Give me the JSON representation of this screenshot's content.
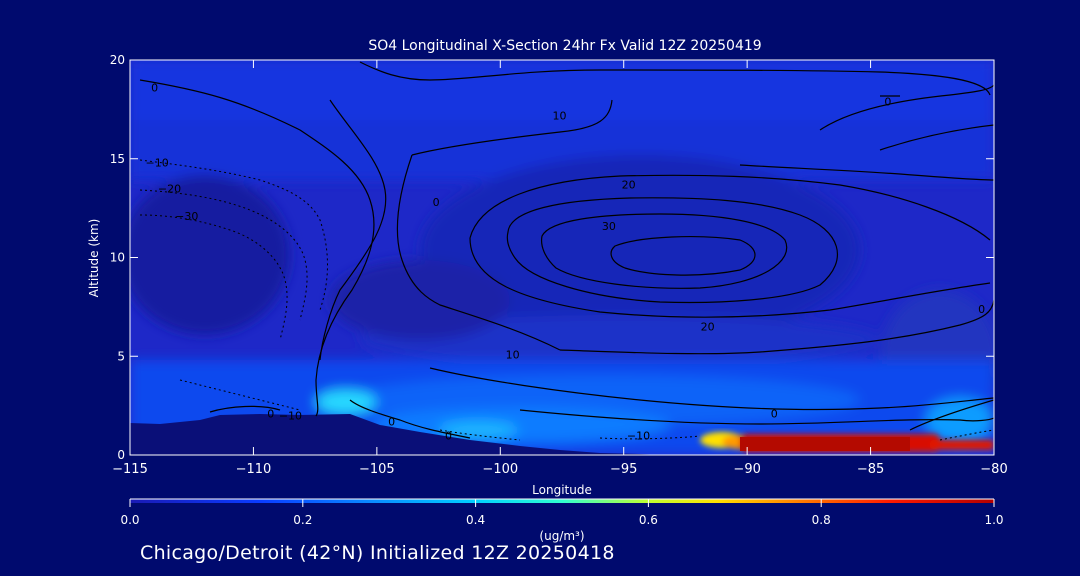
{
  "chart_data": {
    "type": "heatmap",
    "title": "SO4 Longitudinal X-Section 24hr  Fx Valid 12Z 20250419",
    "xlabel": "Longitude",
    "ylabel": "Altitude (km)",
    "xlim": [
      -115,
      -80
    ],
    "ylim": [
      0,
      20
    ],
    "x_ticks": [
      -115,
      -110,
      -105,
      -100,
      -95,
      -90,
      -85,
      -80
    ],
    "x_tick_labels": [
      "−115",
      "−110",
      "−105",
      "−100",
      "−95",
      "−90",
      "−85",
      "−80"
    ],
    "y_ticks": [
      0,
      5,
      10,
      15,
      20
    ],
    "y_tick_labels": [
      "0",
      "5",
      "10",
      "15",
      "20"
    ],
    "colorbar": {
      "min": 0.0,
      "max": 1.0,
      "ticks": [
        "0.0",
        "0.2",
        "0.4",
        "0.6",
        "0.8",
        "1.0"
      ],
      "units_label": "(ug/m³)",
      "colors": [
        "#1a1ab4",
        "#0a3cff",
        "#0a8cff",
        "#00d0ff",
        "#30ffd0",
        "#c0ff30",
        "#ffe000",
        "#ff7800",
        "#ff1a00",
        "#b40000"
      ]
    },
    "contour_labels": [
      {
        "text": "0",
        "lon": -114,
        "alt": 18.6
      },
      {
        "text": "−10",
        "lon": -113.9,
        "alt": 14.8
      },
      {
        "text": "−20",
        "lon": -113.4,
        "alt": 13.5
      },
      {
        "text": "−30",
        "lon": -112.7,
        "alt": 12.1
      },
      {
        "text": "10",
        "lon": -97.6,
        "alt": 17.2
      },
      {
        "text": "0",
        "lon": -84.3,
        "alt": 17.9
      },
      {
        "text": "0",
        "lon": -102.6,
        "alt": 12.8
      },
      {
        "text": "20",
        "lon": -94.8,
        "alt": 13.7
      },
      {
        "text": "30",
        "lon": -95.6,
        "alt": 11.6
      },
      {
        "text": "20",
        "lon": -91.6,
        "alt": 6.5
      },
      {
        "text": "10",
        "lon": -99.5,
        "alt": 5.1
      },
      {
        "text": "0",
        "lon": -80.5,
        "alt": 7.4
      },
      {
        "text": "0",
        "lon": -88.9,
        "alt": 2.1
      },
      {
        "text": "−10",
        "lon": -94.4,
        "alt": 1.0
      },
      {
        "text": "0",
        "lon": -109.3,
        "alt": 2.1
      },
      {
        "text": "−10",
        "lon": -108.5,
        "alt": 2.0
      },
      {
        "text": "0",
        "lon": -104.4,
        "alt": 1.7
      },
      {
        "text": "0",
        "lon": -102.1,
        "alt": 1.0
      }
    ]
  },
  "footer": "Chicago/Detroit (42°N) Initialized 12Z 20250418",
  "colors": {
    "background": "#000a6e",
    "plot_base": "#1e28c8",
    "terrain": "#0a0f78",
    "contour": "#000000"
  }
}
